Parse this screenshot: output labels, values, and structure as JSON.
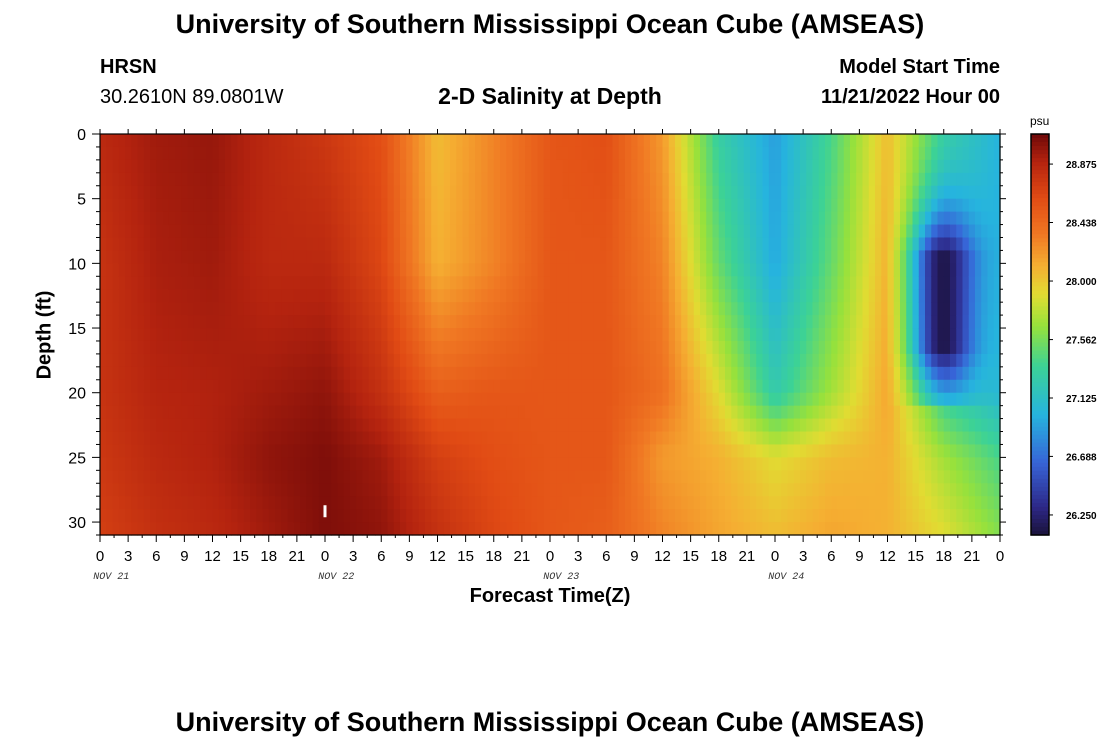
{
  "header": {
    "title": "University of Southern Mississippi Ocean Cube (AMSEAS)",
    "station": "HRSN",
    "coords": "30.2610N  89.0801W",
    "subtitle": "2-D Salinity at Depth",
    "model_start_label": "Model Start Time",
    "model_start_value": "11/21/2022 Hour 00"
  },
  "footer": {
    "title": "University of Southern Mississippi Ocean Cube (AMSEAS)"
  },
  "chart_data": {
    "type": "heatmap",
    "title": "2-D Salinity at Depth",
    "xlabel": "Forecast Time(Z)",
    "ylabel": "Depth (ft)",
    "x_range_hours": [
      0,
      96
    ],
    "ylim": [
      0,
      31
    ],
    "y_inverted": true,
    "x_tick_labels": [
      "0",
      "3",
      "6",
      "9",
      "12",
      "15",
      "18",
      "21",
      "0",
      "3",
      "6",
      "9",
      "12",
      "15",
      "18",
      "21",
      "0",
      "3",
      "6",
      "9",
      "12",
      "15",
      "18",
      "21",
      "0",
      "3",
      "6",
      "9",
      "12",
      "15",
      "18",
      "21",
      "0"
    ],
    "y_ticks": [
      0,
      5,
      10,
      15,
      20,
      25,
      30
    ],
    "date_labels": [
      "NOV 21",
      "NOV 22",
      "NOV 23",
      "NOV 24"
    ],
    "colorbar": {
      "unit": "psu",
      "ticks": [
        "28.875",
        "28.438",
        "28.000",
        "27.562",
        "27.125",
        "26.688",
        "26.250"
      ],
      "range": [
        26.1,
        29.1
      ]
    },
    "hours": [
      0,
      6,
      12,
      18,
      24,
      30,
      36,
      42,
      48,
      54,
      60,
      66,
      72,
      78,
      84,
      90,
      96
    ],
    "depths": [
      0,
      10,
      20,
      25,
      31
    ],
    "values": [
      [
        28.85,
        28.78,
        28.78,
        28.75,
        28.7
      ],
      [
        28.95,
        28.92,
        28.88,
        28.85,
        28.8
      ],
      [
        28.98,
        28.95,
        28.9,
        28.9,
        28.85
      ],
      [
        28.85,
        28.85,
        28.95,
        29.0,
        28.95
      ],
      [
        28.75,
        28.85,
        29.0,
        29.05,
        29.05
      ],
      [
        28.6,
        28.65,
        28.8,
        28.95,
        29.0
      ],
      [
        28.05,
        28.1,
        28.5,
        28.7,
        28.8
      ],
      [
        28.3,
        28.3,
        28.55,
        28.6,
        28.65
      ],
      [
        28.55,
        28.55,
        28.55,
        28.55,
        28.55
      ],
      [
        28.6,
        28.55,
        28.55,
        28.55,
        28.5
      ],
      [
        28.2,
        28.3,
        28.4,
        28.2,
        28.3
      ],
      [
        27.3,
        27.5,
        27.9,
        28.1,
        28.15
      ],
      [
        26.9,
        26.95,
        27.25,
        27.9,
        28.05
      ],
      [
        27.4,
        27.5,
        27.7,
        28.05,
        28.15
      ],
      [
        28.05,
        28.1,
        28.15,
        28.1,
        28.1
      ],
      [
        27.3,
        27.1,
        27.3,
        27.7,
        27.9
      ],
      [
        27.0,
        27.0,
        27.05,
        27.4,
        27.6
      ]
    ],
    "dip_band": {
      "hour_start": 84,
      "hour_end": 96,
      "center_hour": 90,
      "half_width_hours": 3.2,
      "depth_peak": 13,
      "depth_sigma": 6,
      "min_value": 26.15,
      "depth_cutoff": 21
    }
  }
}
